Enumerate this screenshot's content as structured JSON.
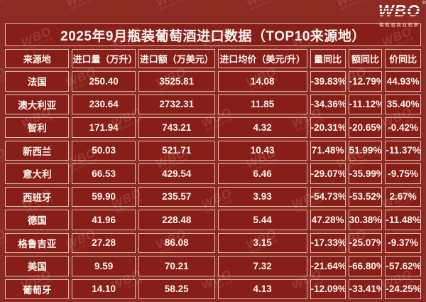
{
  "logo": {
    "text": "WBO",
    "registered": "®",
    "subtext": "葡萄酒商业观察"
  },
  "watermark": {
    "text": "WBO",
    "subtext": "葡萄酒商业观察"
  },
  "colors": {
    "page_background": "#8d2a22",
    "cell_background": "#881e18",
    "border": "#f0d7ce",
    "text": "#fdf6f2"
  },
  "chart_data": {
    "type": "table",
    "title": "2025年9月瓶装葡萄酒进口数据（TOP10来源地）",
    "columns": [
      "来源地",
      "进口量（万升）",
      "进口额（万美元）",
      "进口均价（美元/升）",
      "量同比",
      "额同比",
      "价同比"
    ],
    "rows": [
      [
        "法国",
        "250.40",
        "3525.81",
        "14.08",
        "-39.83%",
        "-12.79%",
        "44.93%"
      ],
      [
        "澳大利亚",
        "230.64",
        "2732.31",
        "11.85",
        "-34.36%",
        "-11.12%",
        "35.40%"
      ],
      [
        "智利",
        "171.94",
        "743.21",
        "4.32",
        "-20.31%",
        "-20.65%",
        "-0.42%"
      ],
      [
        "新西兰",
        "50.03",
        "521.71",
        "10.43",
        "71.48%",
        "51.99%",
        "-11.37%"
      ],
      [
        "意大利",
        "66.53",
        "429.54",
        "6.46",
        "-29.07%",
        "-35.99%",
        "-9.75%"
      ],
      [
        "西班牙",
        "59.90",
        "235.57",
        "3.93",
        "-54.73%",
        "-53.52%",
        "2.67%"
      ],
      [
        "德国",
        "41.96",
        "228.48",
        "5.44",
        "47.28%",
        "30.38%",
        "-11.48%"
      ],
      [
        "格鲁吉亚",
        "27.28",
        "86.08",
        "3.15",
        "-17.33%",
        "-25.07%",
        "-9.37%"
      ],
      [
        "美国",
        "9.59",
        "70.21",
        "7.32",
        "-21.64%",
        "-66.80%",
        "-57.62%"
      ],
      [
        "葡萄牙",
        "14.10",
        "58.25",
        "4.13",
        "-12.09%",
        "-33.41%",
        "-24.25%"
      ]
    ]
  }
}
